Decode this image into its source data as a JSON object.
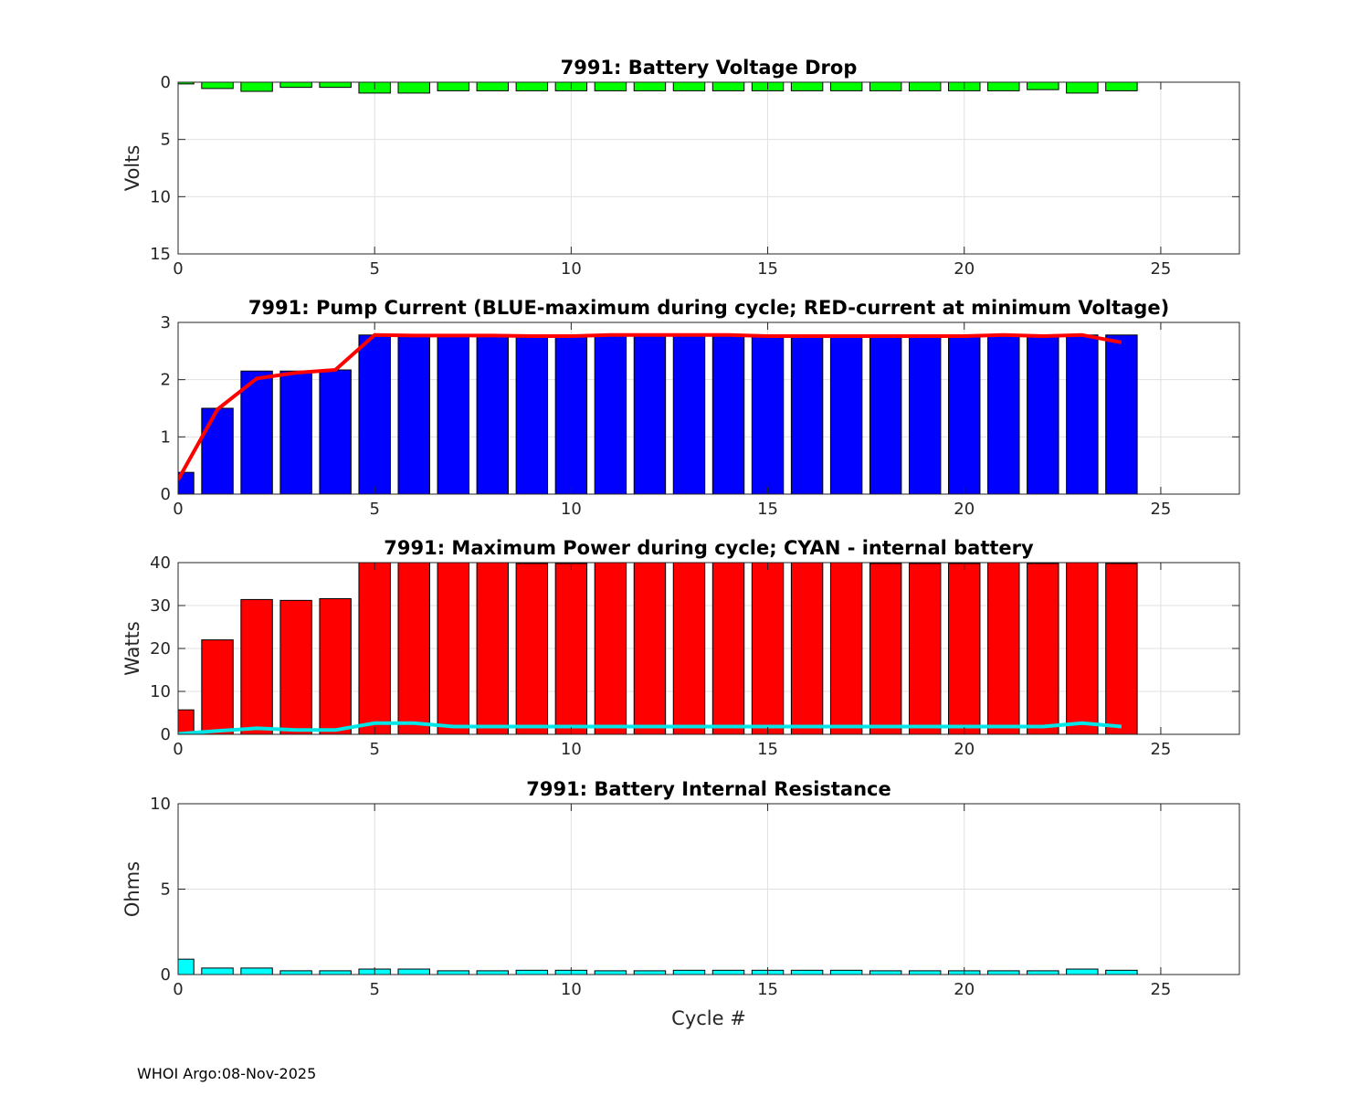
{
  "footer": "WHOI Argo:08-Nov-2025",
  "chart_data": [
    {
      "type": "bar",
      "title": "7991: Battery Voltage Drop",
      "ylabel": "Volts",
      "xlabel": "",
      "xlim": [
        0,
        27
      ],
      "ylim": [
        0,
        15
      ],
      "y_reversed": true,
      "xticks": [
        0,
        5,
        10,
        15,
        20,
        25
      ],
      "yticks": [
        0,
        5,
        10,
        15
      ],
      "grid": true,
      "bar_color": "#00ff00",
      "x": [
        0,
        1,
        2,
        3,
        4,
        5,
        6,
        7,
        8,
        9,
        10,
        11,
        12,
        13,
        14,
        15,
        16,
        17,
        18,
        19,
        20,
        21,
        22,
        23,
        24
      ],
      "values": [
        0.15,
        0.55,
        0.8,
        0.45,
        0.45,
        0.95,
        0.95,
        0.75,
        0.75,
        0.75,
        0.75,
        0.75,
        0.75,
        0.75,
        0.75,
        0.75,
        0.75,
        0.75,
        0.75,
        0.75,
        0.75,
        0.75,
        0.65,
        0.95,
        0.75
      ]
    },
    {
      "type": "bar",
      "title": "7991: Pump Current (BLUE-maximum during cycle; RED-current at minimum Voltage)",
      "ylabel": "",
      "xlabel": "",
      "xlim": [
        0,
        27
      ],
      "ylim": [
        0,
        3
      ],
      "xticks": [
        0,
        5,
        10,
        15,
        20,
        25
      ],
      "yticks": [
        0,
        1,
        2,
        3
      ],
      "grid": true,
      "bar_color": "#0000ff",
      "line_color": "#ff0000",
      "x": [
        0,
        1,
        2,
        3,
        4,
        5,
        6,
        7,
        8,
        9,
        10,
        11,
        12,
        13,
        14,
        15,
        16,
        17,
        18,
        19,
        20,
        21,
        22,
        23,
        24
      ],
      "values": [
        0.38,
        1.5,
        2.15,
        2.15,
        2.17,
        2.78,
        2.78,
        2.78,
        2.78,
        2.78,
        2.78,
        2.78,
        2.78,
        2.78,
        2.78,
        2.78,
        2.78,
        2.78,
        2.78,
        2.78,
        2.78,
        2.78,
        2.78,
        2.78,
        2.78
      ],
      "line_values": [
        0.25,
        1.48,
        2.02,
        2.12,
        2.17,
        2.78,
        2.77,
        2.77,
        2.77,
        2.76,
        2.76,
        2.78,
        2.78,
        2.78,
        2.78,
        2.76,
        2.76,
        2.76,
        2.76,
        2.76,
        2.76,
        2.78,
        2.76,
        2.78,
        2.65
      ]
    },
    {
      "type": "bar",
      "title": "7991: Maximum Power during cycle; CYAN - internal battery",
      "ylabel": "Watts",
      "xlabel": "",
      "xlim": [
        0,
        27
      ],
      "ylim": [
        0,
        40
      ],
      "xticks": [
        0,
        5,
        10,
        15,
        20,
        25
      ],
      "yticks": [
        0,
        10,
        20,
        30,
        40
      ],
      "grid": true,
      "bar_color": "#ff0000",
      "line_color": "#00e5e5",
      "x": [
        0,
        1,
        2,
        3,
        4,
        5,
        6,
        7,
        8,
        9,
        10,
        11,
        12,
        13,
        14,
        15,
        16,
        17,
        18,
        19,
        20,
        21,
        22,
        23,
        24
      ],
      "values": [
        5.7,
        22,
        31.4,
        31.2,
        31.6,
        40,
        40,
        40,
        40,
        39.8,
        39.8,
        40,
        40,
        40,
        40,
        40,
        40,
        40,
        39.8,
        39.8,
        39.8,
        40,
        39.8,
        40,
        39.8
      ],
      "line_values": [
        0.1,
        0.8,
        1.4,
        1.0,
        1.0,
        2.6,
        2.6,
        1.8,
        1.8,
        1.8,
        1.8,
        1.8,
        1.8,
        1.8,
        1.8,
        1.8,
        1.8,
        1.8,
        1.8,
        1.8,
        1.8,
        1.8,
        1.8,
        2.6,
        1.8
      ]
    },
    {
      "type": "bar",
      "title": "7991: Battery Internal Resistance",
      "ylabel": "Ohms",
      "xlabel": "Cycle #",
      "xlim": [
        0,
        27
      ],
      "ylim": [
        0,
        10
      ],
      "xticks": [
        0,
        5,
        10,
        15,
        20,
        25
      ],
      "yticks": [
        0,
        5,
        10
      ],
      "grid": true,
      "bar_color": "#00ffff",
      "x": [
        0,
        1,
        2,
        3,
        4,
        5,
        6,
        7,
        8,
        9,
        10,
        11,
        12,
        13,
        14,
        15,
        16,
        17,
        18,
        19,
        20,
        21,
        22,
        23,
        24
      ],
      "values": [
        0.9,
        0.38,
        0.38,
        0.22,
        0.22,
        0.32,
        0.32,
        0.22,
        0.22,
        0.25,
        0.25,
        0.22,
        0.22,
        0.25,
        0.25,
        0.25,
        0.25,
        0.25,
        0.22,
        0.22,
        0.22,
        0.22,
        0.22,
        0.32,
        0.25
      ]
    }
  ]
}
